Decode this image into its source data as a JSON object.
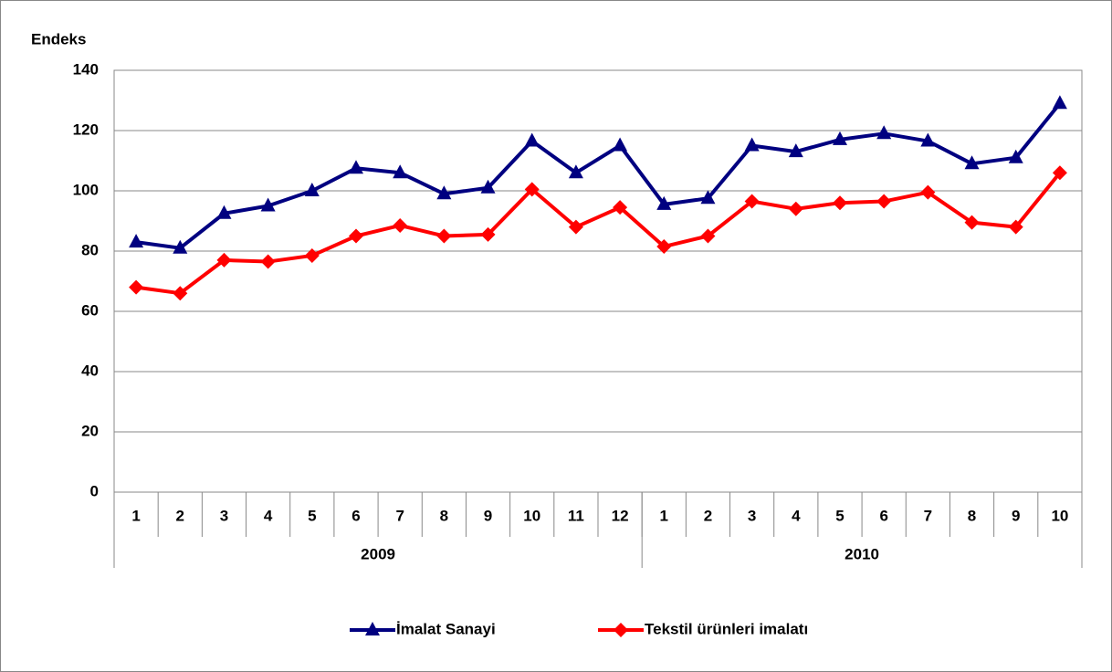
{
  "chart_data": {
    "type": "line",
    "ylabel": "Endeks",
    "category_groups": [
      {
        "name": "2009",
        "categories": [
          "1",
          "2",
          "3",
          "4",
          "5",
          "6",
          "7",
          "8",
          "9",
          "10",
          "11",
          "12"
        ]
      },
      {
        "name": "2010",
        "categories": [
          "1",
          "2",
          "3",
          "4",
          "5",
          "6",
          "7",
          "8",
          "9",
          "10"
        ]
      }
    ],
    "series": [
      {
        "name": "İmalat Sanayi",
        "color": "#000080",
        "marker": "triangle",
        "values": [
          83,
          81,
          92.5,
          95,
          100,
          107.5,
          106,
          99,
          101,
          116.5,
          106,
          115,
          95.5,
          97.5,
          115,
          113,
          117,
          119,
          116.5,
          109,
          111,
          129
        ]
      },
      {
        "name": "Tekstil ürünleri imalatı",
        "color": "#ff0000",
        "marker": "diamond",
        "values": [
          68,
          66,
          77,
          76.5,
          78.5,
          85,
          88.5,
          85,
          85.5,
          100.5,
          88,
          94.5,
          81.5,
          85,
          96.5,
          94,
          96,
          96.5,
          99.5,
          89.5,
          88,
          106
        ]
      }
    ],
    "ylim": [
      0,
      140
    ],
    "yticks": [
      0,
      20,
      40,
      60,
      80,
      100,
      120,
      140
    ],
    "grid": true,
    "legend": "bottom"
  }
}
